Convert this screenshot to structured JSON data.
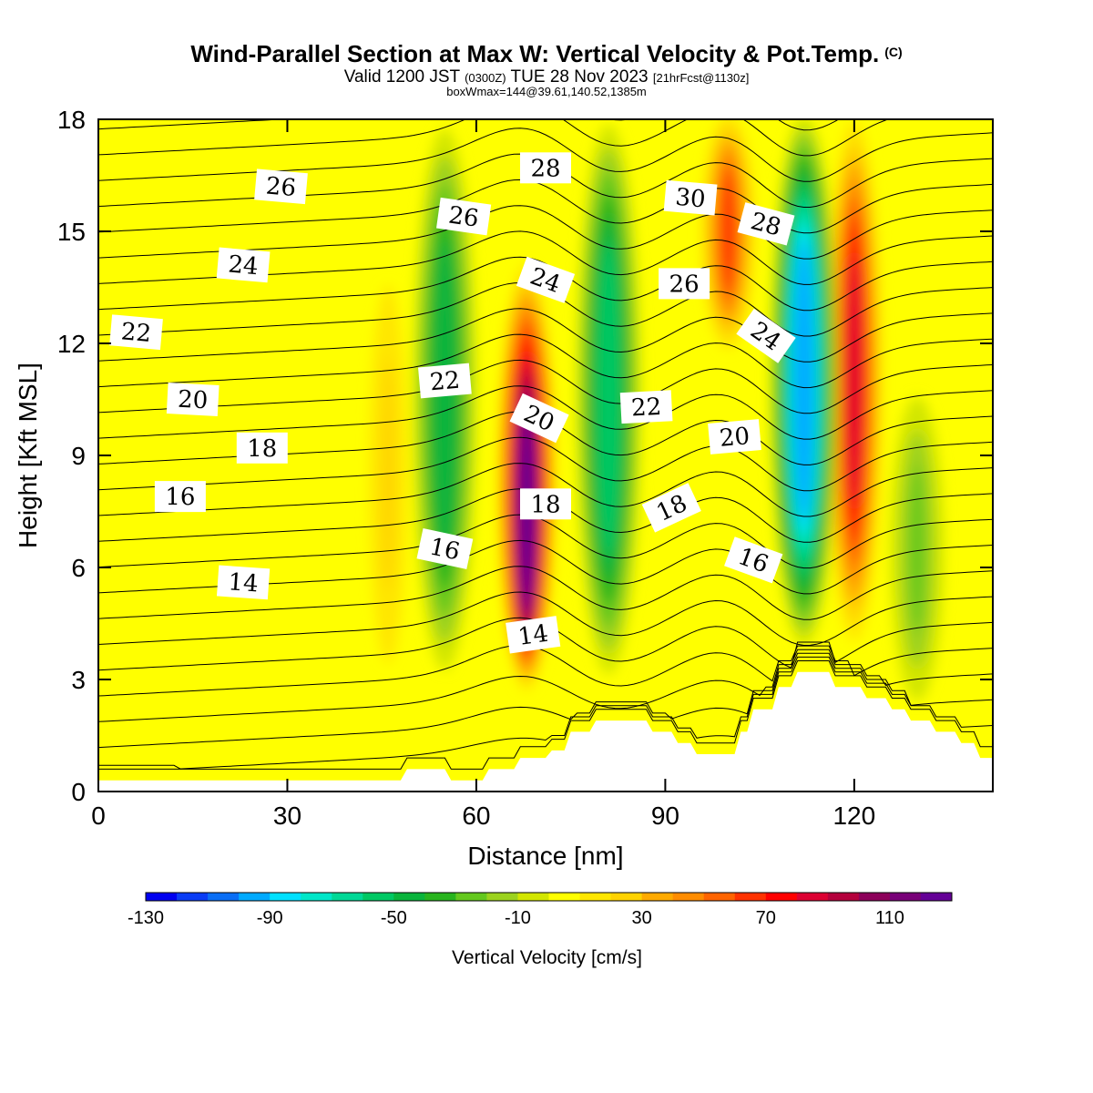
{
  "header": {
    "title": "Wind-Parallel Section at Max W: Vertical Velocity & Pot.Temp.",
    "copyright": "(C)",
    "valid_prefix": "Valid 1200 JST",
    "valid_utc": "(0300Z)",
    "valid_date": "TUE 28 Nov 2023",
    "forecast": "[21hrFcst@1130z]",
    "box_info": "boxWmax=144@39.61,140.52,1385m"
  },
  "chart_data": {
    "type": "heatmap",
    "xlabel": "Distance [nm]",
    "ylabel": "Height [Kft MSL]",
    "xlim": [
      0,
      142
    ],
    "ylim": [
      0,
      18
    ],
    "xticks": [
      "0",
      "30",
      "60",
      "90",
      "120"
    ],
    "yticks": [
      "0",
      "3",
      "6",
      "9",
      "12",
      "15",
      "18"
    ],
    "colorbar": {
      "label": "Vertical Velocity [cm/s]",
      "min": -130,
      "max": 130,
      "step": 10,
      "tick_labels": [
        "-130",
        "-90",
        "-50",
        "-10",
        "30",
        "70",
        "110"
      ],
      "colors": [
        "#0000f0",
        "#0a3cf5",
        "#0a6ef5",
        "#00aaff",
        "#00e0ff",
        "#00e6c8",
        "#00d896",
        "#00c864",
        "#0ab43c",
        "#28b41e",
        "#64c81e",
        "#9bd21e",
        "#d2e600",
        "#ffff00",
        "#ffe600",
        "#ffd200",
        "#ffaa00",
        "#ff8c00",
        "#ff6400",
        "#ff3200",
        "#ff0000",
        "#dc0032",
        "#b4003c",
        "#8c005a",
        "#780078",
        "#640096"
      ]
    },
    "vertical_velocity_features": [
      {
        "kind": "updraft",
        "x_nm": 68,
        "z_base_kft": 3,
        "z_top_kft": 14,
        "peak_cm_s": 120
      },
      {
        "kind": "updraft",
        "x_nm": 120,
        "z_base_kft": 4,
        "z_top_kft": 18,
        "peak_cm_s": 80
      },
      {
        "kind": "updraft",
        "x_nm": 100,
        "z_base_kft": 12,
        "z_top_kft": 18,
        "peak_cm_s": 60
      },
      {
        "kind": "updraft",
        "x_nm": 46,
        "z_base_kft": 2,
        "z_top_kft": 15,
        "peak_cm_s": 25
      },
      {
        "kind": "downdraft",
        "x_nm": 112,
        "z_base_kft": 4,
        "z_top_kft": 18,
        "peak_cm_s": -100
      },
      {
        "kind": "downdraft",
        "x_nm": 81,
        "z_base_kft": 3,
        "z_top_kft": 18,
        "peak_cm_s": -60
      },
      {
        "kind": "downdraft",
        "x_nm": 55,
        "z_base_kft": 3,
        "z_top_kft": 18,
        "peak_cm_s": -50
      },
      {
        "kind": "downdraft",
        "x_nm": 130,
        "z_base_kft": 2,
        "z_top_kft": 11,
        "peak_cm_s": -25
      }
    ],
    "terrain_kft": [
      [
        0,
        0.3
      ],
      [
        48,
        0.3
      ],
      [
        49,
        0.6
      ],
      [
        55,
        0.6
      ],
      [
        56,
        0.3
      ],
      [
        61,
        0.3
      ],
      [
        62,
        0.6
      ],
      [
        66,
        0.6
      ],
      [
        67,
        0.9
      ],
      [
        71,
        0.9
      ],
      [
        72,
        1.1
      ],
      [
        74,
        1.1
      ],
      [
        75,
        1.6
      ],
      [
        78,
        1.6
      ],
      [
        79,
        1.9
      ],
      [
        87,
        1.9
      ],
      [
        88,
        1.6
      ],
      [
        91,
        1.6
      ],
      [
        92,
        1.3
      ],
      [
        94,
        1.3
      ],
      [
        95,
        1.0
      ],
      [
        101,
        1.0
      ],
      [
        102,
        1.6
      ],
      [
        103,
        1.6
      ],
      [
        104,
        2.2
      ],
      [
        107,
        2.2
      ],
      [
        108,
        2.8
      ],
      [
        110,
        2.8
      ],
      [
        111,
        3.2
      ],
      [
        116,
        3.2
      ],
      [
        117,
        2.8
      ],
      [
        121,
        2.8
      ],
      [
        122,
        2.5
      ],
      [
        125,
        2.5
      ],
      [
        126,
        2.2
      ],
      [
        128,
        2.2
      ],
      [
        129,
        1.9
      ],
      [
        132,
        1.9
      ],
      [
        133,
        1.6
      ],
      [
        136,
        1.6
      ],
      [
        137,
        1.3
      ],
      [
        139,
        1.3
      ],
      [
        140,
        0.9
      ],
      [
        142,
        0.9
      ]
    ],
    "theta_labels": [
      {
        "text": "14",
        "x": 23,
        "y": 5.6,
        "rot": 4
      },
      {
        "text": "14",
        "x": 69,
        "y": 4.2,
        "rot": -8
      },
      {
        "text": "16",
        "x": 13,
        "y": 7.9,
        "rot": 0
      },
      {
        "text": "16",
        "x": 55,
        "y": 6.5,
        "rot": 12
      },
      {
        "text": "16",
        "x": 104,
        "y": 6.2,
        "rot": 20
      },
      {
        "text": "18",
        "x": 26,
        "y": 9.2,
        "rot": 0
      },
      {
        "text": "18",
        "x": 71,
        "y": 7.7,
        "rot": 0
      },
      {
        "text": "18",
        "x": 91,
        "y": 7.6,
        "rot": -25
      },
      {
        "text": "20",
        "x": 15,
        "y": 10.5,
        "rot": 3
      },
      {
        "text": "20",
        "x": 70,
        "y": 10.0,
        "rot": 25
      },
      {
        "text": "20",
        "x": 101,
        "y": 9.5,
        "rot": -5
      },
      {
        "text": "22",
        "x": 6,
        "y": 12.3,
        "rot": 5
      },
      {
        "text": "22",
        "x": 55,
        "y": 11.0,
        "rot": -5
      },
      {
        "text": "22",
        "x": 87,
        "y": 10.3,
        "rot": -3
      },
      {
        "text": "24",
        "x": 23,
        "y": 14.1,
        "rot": 5
      },
      {
        "text": "24",
        "x": 71,
        "y": 13.7,
        "rot": 20
      },
      {
        "text": "24",
        "x": 106,
        "y": 12.2,
        "rot": 35
      },
      {
        "text": "26",
        "x": 29,
        "y": 16.2,
        "rot": 5
      },
      {
        "text": "26",
        "x": 58,
        "y": 15.4,
        "rot": 8
      },
      {
        "text": "26",
        "x": 93,
        "y": 13.6,
        "rot": 0
      },
      {
        "text": "28",
        "x": 71,
        "y": 16.7,
        "rot": 0
      },
      {
        "text": "28",
        "x": 106,
        "y": 15.2,
        "rot": 15
      },
      {
        "text": "30",
        "x": 94,
        "y": 15.9,
        "rot": 5
      }
    ]
  }
}
